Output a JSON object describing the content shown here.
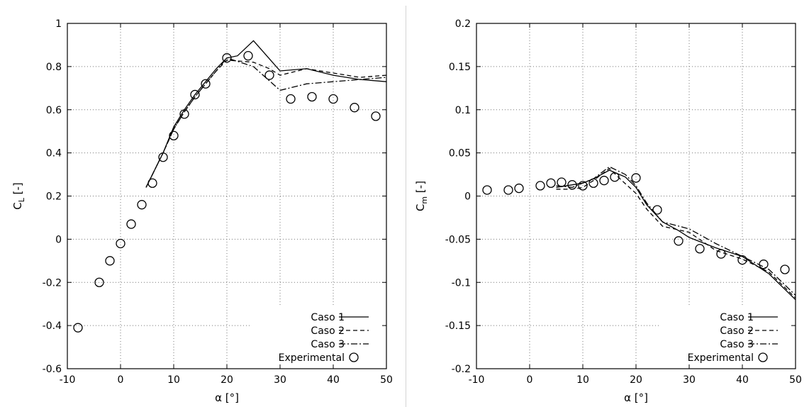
{
  "chart_data": [
    {
      "type": "line",
      "panel": "left",
      "title": "",
      "xlabel": "α [°]",
      "ylabel": "C",
      "ylabel_sub": "L",
      "ylabel_suffix": " [-]",
      "xlim": [
        -10,
        50
      ],
      "ylim": [
        -0.6,
        1
      ],
      "xticks": [
        -10,
        0,
        10,
        20,
        30,
        40,
        50
      ],
      "xtick_labels": [
        "-10",
        "0",
        "10",
        "20",
        "30",
        "40",
        "50"
      ],
      "yticks": [
        -0.6,
        -0.4,
        -0.2,
        0,
        0.2,
        0.4,
        0.6,
        0.8,
        1
      ],
      "ytick_labels": [
        "-0.6",
        "-0.4",
        "-0.2",
        "0",
        "0.2",
        "0.4",
        "0.6",
        "0.8",
        "1"
      ],
      "grid": "dotted",
      "legend_position": "bottom-right",
      "series": [
        {
          "name": "Caso 1",
          "style": "solid",
          "points": [
            [
              4.8,
              0.24
            ],
            [
              6,
              0.3
            ],
            [
              8,
              0.4
            ],
            [
              10,
              0.52
            ],
            [
              12,
              0.6
            ],
            [
              14,
              0.67
            ],
            [
              16,
              0.73
            ],
            [
              18,
              0.79
            ],
            [
              20,
              0.84
            ],
            [
              22,
              0.85
            ],
            [
              25,
              0.92
            ],
            [
              30,
              0.78
            ],
            [
              35,
              0.79
            ],
            [
              40,
              0.76
            ],
            [
              45,
              0.74
            ],
            [
              50,
              0.73
            ]
          ]
        },
        {
          "name": "Caso 2",
          "style": "dashed",
          "points": [
            [
              4.8,
              0.24
            ],
            [
              6,
              0.3
            ],
            [
              8,
              0.4
            ],
            [
              10,
              0.51
            ],
            [
              12,
              0.59
            ],
            [
              14,
              0.66
            ],
            [
              16,
              0.72
            ],
            [
              18,
              0.78
            ],
            [
              20,
              0.83
            ],
            [
              25,
              0.82
            ],
            [
              28,
              0.79
            ],
            [
              30,
              0.76
            ],
            [
              35,
              0.79
            ],
            [
              40,
              0.77
            ],
            [
              45,
              0.75
            ],
            [
              50,
              0.76
            ]
          ]
        },
        {
          "name": "Caso 3",
          "style": "dashdot",
          "points": [
            [
              4.8,
              0.24
            ],
            [
              6,
              0.3
            ],
            [
              8,
              0.4
            ],
            [
              10,
              0.51
            ],
            [
              12,
              0.59
            ],
            [
              14,
              0.66
            ],
            [
              16,
              0.72
            ],
            [
              18,
              0.78
            ],
            [
              20,
              0.84
            ],
            [
              25,
              0.8
            ],
            [
              30,
              0.69
            ],
            [
              35,
              0.72
            ],
            [
              40,
              0.73
            ],
            [
              45,
              0.74
            ],
            [
              50,
              0.75
            ]
          ]
        },
        {
          "name": "Experimental",
          "style": "markers",
          "points": [
            [
              -8,
              -0.41
            ],
            [
              -4,
              -0.2
            ],
            [
              -2,
              -0.1
            ],
            [
              0,
              -0.02
            ],
            [
              2,
              0.07
            ],
            [
              4,
              0.16
            ],
            [
              6,
              0.26
            ],
            [
              8,
              0.38
            ],
            [
              10,
              0.48
            ],
            [
              12,
              0.58
            ],
            [
              14,
              0.67
            ],
            [
              16,
              0.72
            ],
            [
              20,
              0.84
            ],
            [
              24,
              0.85
            ],
            [
              28,
              0.76
            ],
            [
              32,
              0.65
            ],
            [
              36,
              0.66
            ],
            [
              40,
              0.65
            ],
            [
              44,
              0.61
            ],
            [
              48,
              0.57
            ]
          ]
        }
      ]
    },
    {
      "type": "line",
      "panel": "right",
      "title": "",
      "xlabel": "α [°]",
      "ylabel": "C",
      "ylabel_sub": "m",
      "ylabel_suffix": " [-]",
      "xlim": [
        -10,
        50
      ],
      "ylim": [
        -0.2,
        0.2
      ],
      "xticks": [
        -10,
        0,
        10,
        20,
        30,
        40,
        50
      ],
      "xtick_labels": [
        "-10",
        "0",
        "10",
        "20",
        "30",
        "40",
        "50"
      ],
      "yticks": [
        -0.2,
        -0.15,
        -0.1,
        -0.05,
        0,
        0.05,
        0.1,
        0.15,
        0.2
      ],
      "ytick_labels": [
        "-0.2",
        "-0.15",
        "-0.1",
        "-0.05",
        "0",
        "0.05",
        "0.1",
        "0.15",
        "0.2"
      ],
      "grid": "dotted",
      "legend_position": "bottom-right",
      "series": [
        {
          "name": "Caso 1",
          "style": "solid",
          "points": [
            [
              5,
              0.01
            ],
            [
              8,
              0.013
            ],
            [
              10,
              0.015
            ],
            [
              12,
              0.02
            ],
            [
              15,
              0.03
            ],
            [
              18,
              0.022
            ],
            [
              20,
              0.01
            ],
            [
              22,
              -0.01
            ],
            [
              25,
              -0.03
            ],
            [
              28,
              -0.04
            ],
            [
              30,
              -0.048
            ],
            [
              35,
              -0.06
            ],
            [
              40,
              -0.07
            ],
            [
              45,
              -0.09
            ],
            [
              50,
              -0.12
            ]
          ]
        },
        {
          "name": "Caso 2",
          "style": "dashed",
          "points": [
            [
              5,
              0.008
            ],
            [
              8,
              0.008
            ],
            [
              10,
              0.01
            ],
            [
              12,
              0.018
            ],
            [
              15,
              0.032
            ],
            [
              17,
              0.02
            ],
            [
              20,
              0.003
            ],
            [
              22,
              -0.015
            ],
            [
              25,
              -0.035
            ],
            [
              30,
              -0.042
            ],
            [
              35,
              -0.063
            ],
            [
              40,
              -0.073
            ],
            [
              45,
              -0.088
            ],
            [
              50,
              -0.118
            ]
          ]
        },
        {
          "name": "Caso 3",
          "style": "dashdot",
          "points": [
            [
              5,
              0.012
            ],
            [
              8,
              0.01
            ],
            [
              10,
              0.015
            ],
            [
              12,
              0.02
            ],
            [
              15,
              0.034
            ],
            [
              18,
              0.025
            ],
            [
              20,
              0.012
            ],
            [
              22,
              -0.008
            ],
            [
              25,
              -0.03
            ],
            [
              30,
              -0.038
            ],
            [
              35,
              -0.055
            ],
            [
              40,
              -0.07
            ],
            [
              45,
              -0.085
            ],
            [
              50,
              -0.115
            ]
          ]
        },
        {
          "name": "Experimental",
          "style": "markers",
          "points": [
            [
              -8,
              0.007
            ],
            [
              -4,
              0.007
            ],
            [
              -2,
              0.009
            ],
            [
              2,
              0.012
            ],
            [
              4,
              0.015
            ],
            [
              6,
              0.016
            ],
            [
              8,
              0.013
            ],
            [
              10,
              0.012
            ],
            [
              12,
              0.015
            ],
            [
              14,
              0.018
            ],
            [
              16,
              0.022
            ],
            [
              20,
              0.021
            ],
            [
              24,
              -0.016
            ],
            [
              28,
              -0.052
            ],
            [
              32,
              -0.061
            ],
            [
              36,
              -0.067
            ],
            [
              40,
              -0.074
            ],
            [
              44,
              -0.079
            ],
            [
              48,
              -0.085
            ]
          ]
        }
      ]
    }
  ]
}
